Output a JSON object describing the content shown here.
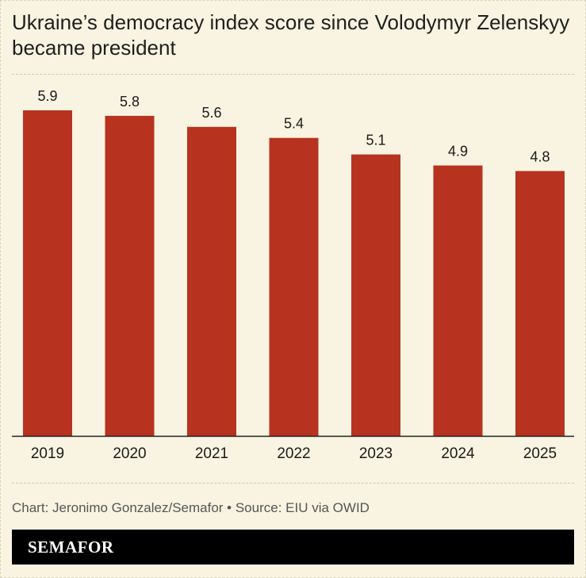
{
  "chart_data": {
    "type": "bar",
    "title": "Ukraine’s democracy index score since Volodymyr Zelenskyy became president",
    "categories": [
      "2019",
      "2020",
      "2021",
      "2022",
      "2023",
      "2024",
      "2025"
    ],
    "values": [
      5.9,
      5.8,
      5.6,
      5.4,
      5.1,
      4.9,
      4.8
    ],
    "value_labels": [
      "5.9",
      "5.8",
      "5.6",
      "5.4",
      "5.1",
      "4.9",
      "4.8"
    ],
    "xlabel": "",
    "ylabel": "",
    "ylim": [
      0,
      6
    ],
    "grid": false,
    "bar_color": "#b83220"
  },
  "footer": {
    "credit": "Chart: Jeronimo Gonzalez/Semafor • Source: EIU via OWID",
    "brand": "SEMAFOR"
  }
}
